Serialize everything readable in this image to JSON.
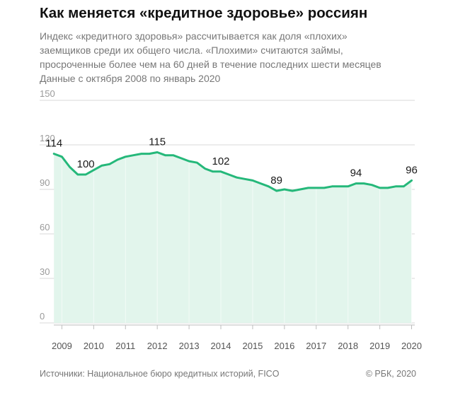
{
  "title": "Как меняется «кредитное здоровье» россиян",
  "subtitle_lines": [
    "Индекс «кредитного здоровья» рассчитывается как доля «плохих»",
    "заемщиков среди их общего числа. «Плохими» считаются займы,",
    "просроченные более чем на 60 дней в течение последних шести месяцев",
    "Данные с октября 2008 по январь 2020"
  ],
  "source": "Источники: Национальное бюро кредитных историй, FICO",
  "copyright": "© РБК, 2020",
  "colors": {
    "line": "#25b87a",
    "fill": "#e2f5ec",
    "grid": "#d8d8d8",
    "tick": "#9a9a9a"
  },
  "chart_data": {
    "type": "area",
    "ylim": [
      0,
      150
    ],
    "xlim": [
      2008.3,
      2020.1
    ],
    "yticks": [
      0,
      30,
      60,
      90,
      120,
      150
    ],
    "xticks": [
      "2009",
      "2010",
      "2011",
      "2012",
      "2013",
      "2014",
      "2015",
      "2016",
      "2017",
      "2018",
      "2019",
      "2020"
    ],
    "grid": true,
    "x": [
      2008.75,
      2009.0,
      2009.25,
      2009.5,
      2009.75,
      2010.0,
      2010.25,
      2010.5,
      2010.75,
      2011.0,
      2011.25,
      2011.5,
      2011.75,
      2012.0,
      2012.25,
      2012.5,
      2012.75,
      2013.0,
      2013.25,
      2013.5,
      2013.75,
      2014.0,
      2014.25,
      2014.5,
      2014.75,
      2015.0,
      2015.25,
      2015.5,
      2015.75,
      2016.0,
      2016.25,
      2016.5,
      2016.75,
      2017.0,
      2017.25,
      2017.5,
      2017.75,
      2018.0,
      2018.25,
      2018.5,
      2018.75,
      2019.0,
      2019.25,
      2019.5,
      2019.75,
      2020.0
    ],
    "values": [
      114,
      112,
      105,
      100,
      100,
      103,
      106,
      107,
      110,
      112,
      113,
      114,
      114,
      115,
      113,
      113,
      111,
      109,
      108,
      104,
      102,
      102,
      100,
      98,
      97,
      96,
      94,
      92,
      89,
      90,
      89,
      90,
      91,
      91,
      91,
      92,
      92,
      92,
      94,
      94,
      93,
      91,
      91,
      92,
      92,
      96
    ],
    "labels": [
      {
        "x": 2008.75,
        "text": "114"
      },
      {
        "x": 2009.75,
        "text": "100"
      },
      {
        "x": 2012.0,
        "text": "115"
      },
      {
        "x": 2014.0,
        "text": "102"
      },
      {
        "x": 2015.75,
        "text": "89"
      },
      {
        "x": 2018.25,
        "text": "94"
      },
      {
        "x": 2020.0,
        "text": "96"
      }
    ]
  }
}
